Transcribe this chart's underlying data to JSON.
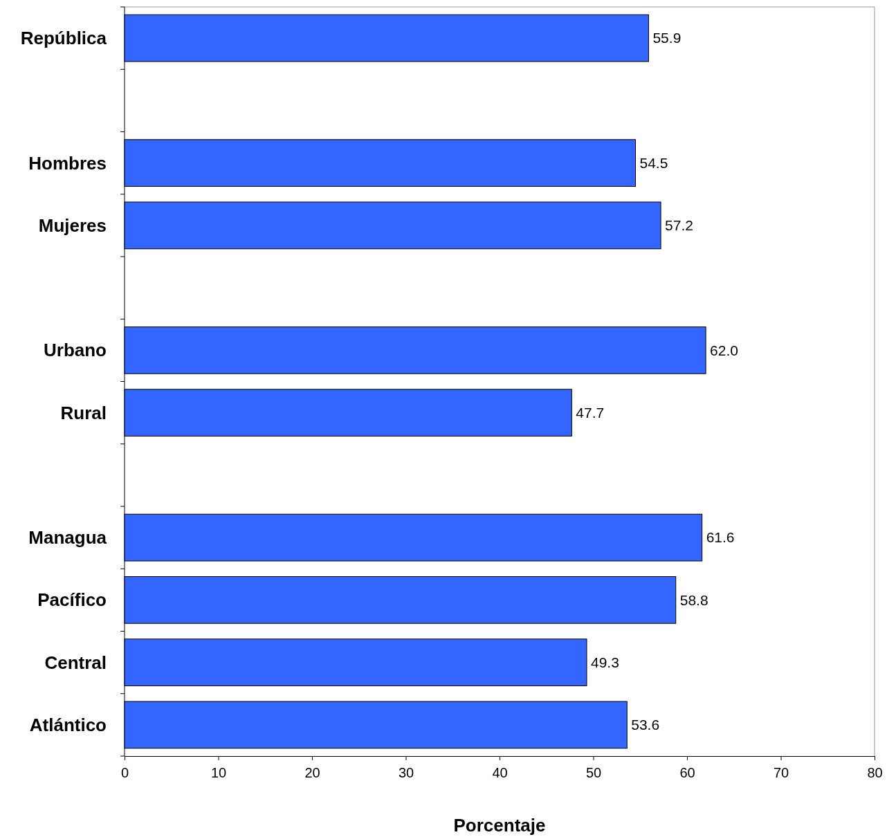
{
  "chart_data": {
    "type": "bar",
    "orientation": "horizontal",
    "xlabel": "Porcentaje",
    "categories": [
      "República",
      null,
      "Hombres",
      "Mujeres",
      null,
      "Urbano",
      "Rural",
      null,
      "Managua",
      "Pacífico",
      "Central",
      "Atlántico"
    ],
    "values": [
      55.9,
      null,
      54.5,
      57.2,
      null,
      62.0,
      47.7,
      null,
      61.6,
      58.8,
      49.3,
      53.6
    ],
    "value_labels": [
      "55.9",
      null,
      "54.5",
      "57.2",
      null,
      "62.0",
      "47.7",
      null,
      "61.6",
      "58.8",
      "49.3",
      "53.6"
    ],
    "color": "#3366ff",
    "xlim": [
      0,
      80
    ],
    "xticks": [
      0,
      10,
      20,
      30,
      40,
      50,
      60,
      70,
      80
    ],
    "grid": false
  }
}
